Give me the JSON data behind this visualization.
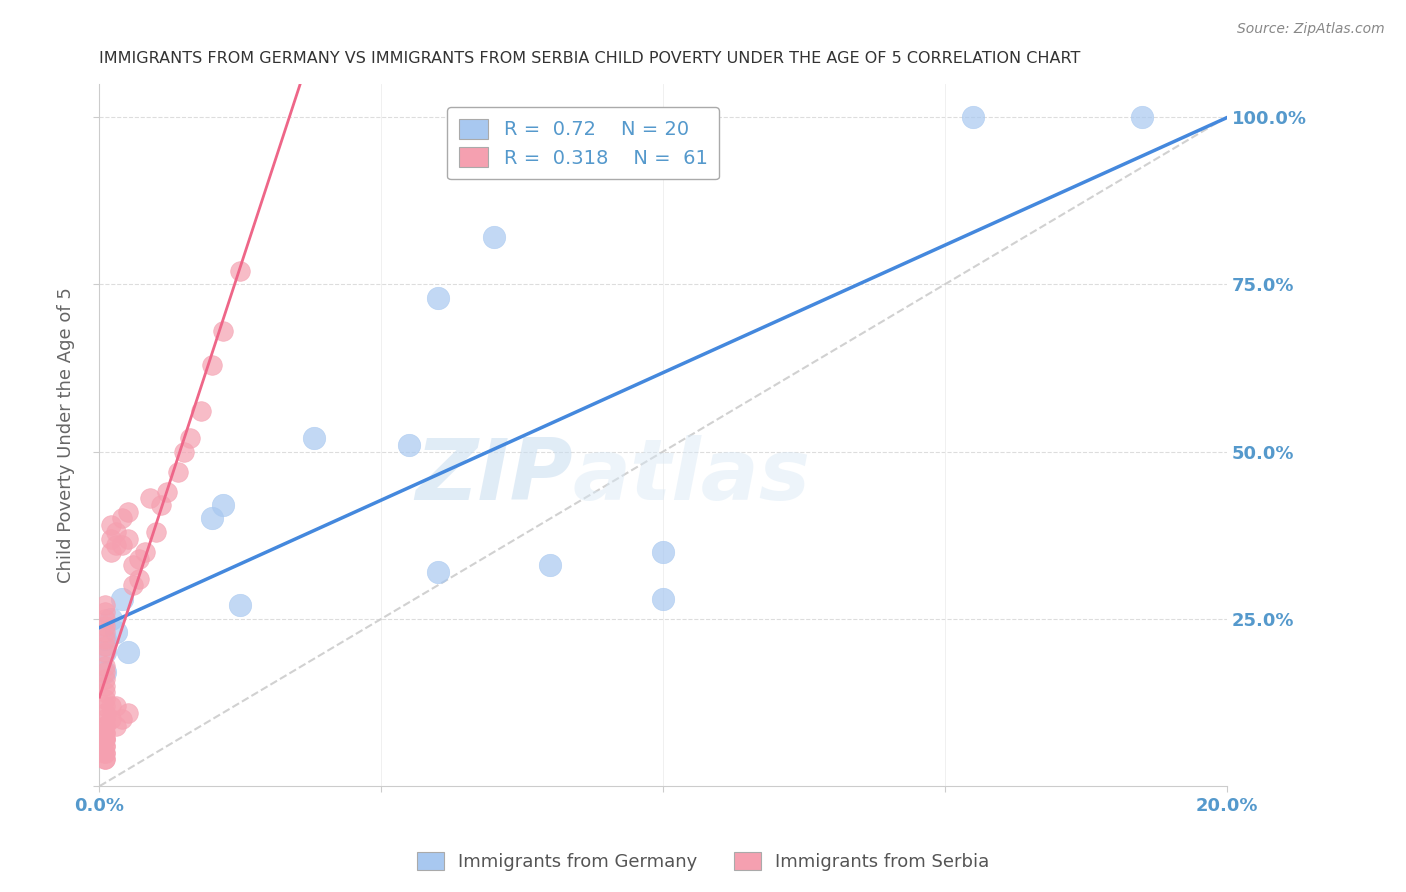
{
  "title": "IMMIGRANTS FROM GERMANY VS IMMIGRANTS FROM SERBIA CHILD POVERTY UNDER THE AGE OF 5 CORRELATION CHART",
  "source": "Source: ZipAtlas.com",
  "ylabel": "Child Poverty Under the Age of 5",
  "xlim": [
    0,
    0.2
  ],
  "ylim": [
    0,
    1.05
  ],
  "germany_color": "#a8c8f0",
  "serbia_color": "#f5a0b0",
  "germany_R": 0.72,
  "germany_N": 20,
  "serbia_R": 0.318,
  "serbia_N": 61,
  "watermark_zip": "ZIP",
  "watermark_atlas": "atlas",
  "germany_line_color": "#4488dd",
  "serbia_line_color": "#ee6688",
  "diag_color": "#cccccc",
  "grid_color": "#dddddd",
  "tick_label_color": "#5599cc",
  "title_color": "#333333",
  "legend_label_color": "#5599cc",
  "germany_scatter_x": [
    0.001,
    0.001,
    0.001,
    0.002,
    0.003,
    0.004,
    0.005,
    0.02,
    0.022,
    0.025,
    0.038,
    0.055,
    0.06,
    0.06,
    0.07,
    0.08,
    0.1,
    0.1,
    0.155,
    0.185
  ],
  "germany_scatter_y": [
    0.17,
    0.2,
    0.22,
    0.25,
    0.23,
    0.28,
    0.2,
    0.4,
    0.42,
    0.27,
    0.52,
    0.51,
    0.73,
    0.32,
    0.82,
    0.33,
    0.35,
    0.28,
    1.0,
    1.0
  ],
  "serbia_scatter_x": [
    0.001,
    0.001,
    0.001,
    0.001,
    0.001,
    0.001,
    0.001,
    0.001,
    0.001,
    0.001,
    0.001,
    0.001,
    0.001,
    0.001,
    0.001,
    0.001,
    0.001,
    0.001,
    0.001,
    0.001,
    0.001,
    0.001,
    0.001,
    0.001,
    0.001,
    0.001,
    0.001,
    0.001,
    0.001,
    0.001,
    0.002,
    0.002,
    0.002,
    0.002,
    0.002,
    0.003,
    0.003,
    0.003,
    0.003,
    0.004,
    0.004,
    0.004,
    0.005,
    0.005,
    0.005,
    0.006,
    0.006,
    0.007,
    0.007,
    0.008,
    0.009,
    0.01,
    0.011,
    0.012,
    0.014,
    0.015,
    0.016,
    0.018,
    0.02,
    0.022,
    0.025
  ],
  "serbia_scatter_y": [
    0.04,
    0.04,
    0.05,
    0.05,
    0.06,
    0.06,
    0.07,
    0.07,
    0.07,
    0.08,
    0.08,
    0.09,
    0.09,
    0.1,
    0.11,
    0.12,
    0.13,
    0.14,
    0.15,
    0.16,
    0.17,
    0.18,
    0.2,
    0.21,
    0.22,
    0.23,
    0.24,
    0.25,
    0.26,
    0.27,
    0.1,
    0.12,
    0.35,
    0.37,
    0.39,
    0.09,
    0.12,
    0.36,
    0.38,
    0.1,
    0.36,
    0.4,
    0.11,
    0.37,
    0.41,
    0.3,
    0.33,
    0.31,
    0.34,
    0.35,
    0.43,
    0.38,
    0.42,
    0.44,
    0.47,
    0.5,
    0.52,
    0.56,
    0.63,
    0.68,
    0.77
  ]
}
